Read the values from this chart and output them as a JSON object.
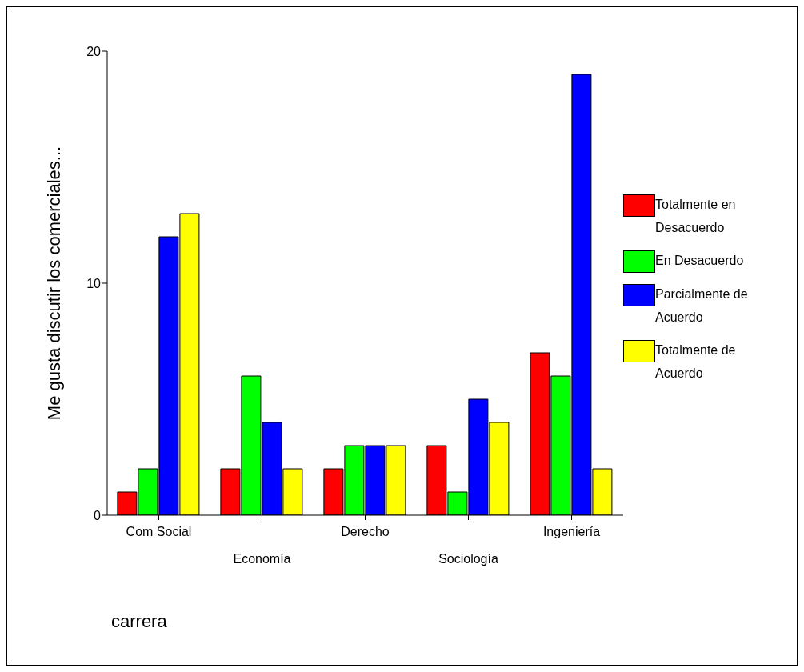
{
  "chart_data": {
    "type": "bar",
    "xlabel": "carrera",
    "ylabel": "Me gusta discutir los comerciales...",
    "categories": [
      "Com Social",
      "Economía",
      "Derecho",
      "Sociología",
      "Ingeniería"
    ],
    "series": [
      {
        "name": "Totalmente en Desacuerdo",
        "color": "#ff0000",
        "values": [
          1,
          2,
          2,
          3,
          7
        ]
      },
      {
        "name": "En Desacuerdo",
        "color": "#00ff00",
        "values": [
          2,
          6,
          3,
          1,
          6
        ]
      },
      {
        "name": "Parcialmente de Acuerdo",
        "color": "#0000ff",
        "values": [
          12,
          4,
          3,
          5,
          19
        ]
      },
      {
        "name": "Totalmente de Acuerdo",
        "color": "#ffff00",
        "values": [
          13,
          2,
          3,
          4,
          2
        ]
      }
    ],
    "ylim": [
      0,
      20
    ],
    "yticks": [
      0,
      10,
      20
    ],
    "grid": false,
    "legend": "right"
  }
}
